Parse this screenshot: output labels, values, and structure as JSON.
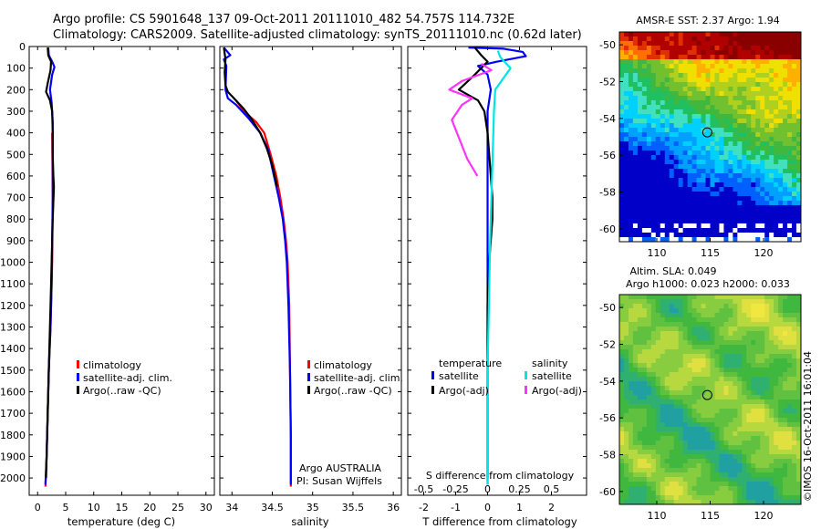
{
  "header": {
    "line1": "Argo profile: CS 5901648_137 09-Oct-2011 20111010_482 54.757S 114.732E",
    "line2": "Climatology: CARS2009. Satellite-adjusted climatology: synTS_20111010.nc (0.62d later)"
  },
  "colors": {
    "climatology": "#ff0000",
    "satellite": "#0000ff",
    "argo": "#000000",
    "salinity_satellite": "#00e5e5",
    "salinity_argo": "#ff33ff",
    "map_land_gap": "#ffffff"
  },
  "chart_data": [
    {
      "type": "line",
      "panel": "temperature",
      "xlabel": "temperature (deg C)",
      "ylabel": "",
      "xlim": [
        -1.5,
        31.5
      ],
      "ylim": [
        2080,
        0
      ],
      "x_ticks": [
        "0",
        "5",
        "10",
        "15",
        "20",
        "25",
        "30"
      ],
      "x_tick_values": [
        0,
        5,
        10,
        15,
        20,
        25,
        30
      ],
      "y_ticks": [
        0,
        100,
        200,
        300,
        400,
        500,
        600,
        700,
        800,
        900,
        1000,
        1100,
        1200,
        1300,
        1400,
        1500,
        1600,
        1700,
        1800,
        1900,
        2000
      ],
      "legend": [
        "climatology",
        "satellite-adj. clim.",
        "Argo(..raw -QC)"
      ],
      "legend_position": "lower-center",
      "series": [
        {
          "name": "climatology",
          "color_key": "climatology",
          "points": [
            [
              2.6,
              400
            ],
            [
              2.7,
              700
            ],
            [
              2.6,
              1000
            ],
            [
              2.3,
              1300
            ],
            [
              2.0,
              1500
            ],
            [
              1.8,
              1700
            ],
            [
              1.6,
              1900
            ],
            [
              1.4,
              2040
            ]
          ]
        },
        {
          "name": "satellite-adj. clim.",
          "color_key": "satellite",
          "points": [
            [
              1.9,
              5
            ],
            [
              2.0,
              40
            ],
            [
              2.6,
              70
            ],
            [
              3.0,
              95
            ],
            [
              2.6,
              130
            ],
            [
              2.2,
              200
            ],
            [
              2.5,
              260
            ],
            [
              2.7,
              350
            ],
            [
              2.7,
              500
            ],
            [
              2.7,
              700
            ],
            [
              2.6,
              900
            ],
            [
              2.5,
              1100
            ],
            [
              2.3,
              1300
            ],
            [
              2.0,
              1500
            ],
            [
              1.8,
              1700
            ],
            [
              1.6,
              1900
            ],
            [
              1.4,
              2030
            ]
          ]
        },
        {
          "name": "Argo(..raw -QC)",
          "color_key": "argo",
          "points": [
            [
              1.8,
              5
            ],
            [
              1.9,
              40
            ],
            [
              2.4,
              70
            ],
            [
              2.3,
              110
            ],
            [
              1.8,
              170
            ],
            [
              1.5,
              210
            ],
            [
              2.2,
              250
            ],
            [
              2.6,
              300
            ],
            [
              2.7,
              400
            ],
            [
              2.7,
              500
            ],
            [
              2.8,
              600
            ],
            [
              2.9,
              650
            ],
            [
              2.8,
              720
            ],
            [
              2.7,
              800
            ],
            [
              2.6,
              900
            ],
            [
              2.5,
              1000
            ],
            [
              2.3,
              1200
            ],
            [
              2.1,
              1400
            ],
            [
              1.9,
              1600
            ],
            [
              1.7,
              1800
            ],
            [
              1.5,
              2000
            ]
          ]
        }
      ]
    },
    {
      "type": "line",
      "panel": "salinity",
      "xlabel": "salinity",
      "ylabel": "",
      "xlim": [
        33.85,
        36.1
      ],
      "ylim": [
        2080,
        0
      ],
      "x_ticks": [
        "34",
        "34.5",
        "35",
        "35.5",
        "36"
      ],
      "x_tick_values": [
        34,
        34.5,
        35,
        35.5,
        36
      ],
      "legend": [
        "climatology",
        "satellite-adj. clim.",
        "Argo(..raw -QC)"
      ],
      "legend_position": "lower-right",
      "annotation": [
        "Argo AUSTRALIA",
        "PI: Susan Wijffels"
      ],
      "series": [
        {
          "name": "climatology",
          "color_key": "climatology",
          "points": [
            [
              34.05,
              250
            ],
            [
              34.15,
              300
            ],
            [
              34.3,
              350
            ],
            [
              34.4,
              400
            ],
            [
              34.48,
              500
            ],
            [
              34.55,
              600
            ],
            [
              34.6,
              700
            ],
            [
              34.64,
              800
            ],
            [
              34.67,
              900
            ],
            [
              34.69,
              1000
            ],
            [
              34.71,
              1200
            ],
            [
              34.72,
              1500
            ],
            [
              34.73,
              1800
            ],
            [
              34.73,
              2040
            ]
          ]
        },
        {
          "name": "satellite-adj. clim.",
          "color_key": "satellite",
          "points": [
            [
              33.9,
              5
            ],
            [
              33.98,
              40
            ],
            [
              33.9,
              60
            ],
            [
              33.93,
              90
            ],
            [
              33.92,
              200
            ],
            [
              33.95,
              240
            ],
            [
              34.05,
              270
            ],
            [
              34.2,
              330
            ],
            [
              34.35,
              400
            ],
            [
              34.45,
              480
            ],
            [
              34.52,
              600
            ],
            [
              34.58,
              700
            ],
            [
              34.63,
              800
            ],
            [
              34.66,
              900
            ],
            [
              34.68,
              1000
            ],
            [
              34.7,
              1200
            ],
            [
              34.72,
              1500
            ],
            [
              34.73,
              1800
            ],
            [
              34.73,
              2030
            ]
          ]
        },
        {
          "name": "Argo(..raw -QC)",
          "color_key": "argo",
          "points": [
            [
              33.9,
              5
            ],
            [
              33.92,
              60
            ],
            [
              33.91,
              120
            ],
            [
              33.92,
              180
            ],
            [
              33.95,
              210
            ],
            [
              34.05,
              250
            ],
            [
              34.15,
              290
            ],
            [
              34.25,
              340
            ],
            [
              34.35,
              400
            ],
            [
              34.43,
              470
            ],
            [
              34.5,
              550
            ],
            [
              34.56,
              650
            ]
          ]
        }
      ]
    },
    {
      "type": "line",
      "panel": "difference",
      "xlabel": "T difference from climatology",
      "top_label": "S difference from climatology",
      "xlim": [
        -2.5,
        3.1
      ],
      "ylim": [
        2080,
        0
      ],
      "x_ticks": [
        "-2",
        "-1",
        "0",
        "1",
        "2"
      ],
      "x_tick_values": [
        -2,
        -1,
        0,
        1,
        2
      ],
      "s_ticks": [
        "-0.5",
        "-0.25",
        "0",
        "0.25",
        "0.5"
      ],
      "s_tick_values": [
        -0.5,
        -0.25,
        0,
        0.25,
        0.5
      ],
      "legend_headers": [
        "temperature",
        "salinity"
      ],
      "legend": [
        "satellite",
        "Argo(-adj)",
        "satellite",
        "Argo(-adj)"
      ],
      "legend_position": "lower-center",
      "series": [
        {
          "name": "satellite",
          "group": "temperature",
          "color_key": "satellite",
          "points": [
            [
              -0.6,
              5
            ],
            [
              0.5,
              10
            ],
            [
              1.1,
              25
            ],
            [
              1.2,
              45
            ],
            [
              0.3,
              70
            ],
            [
              -0.3,
              90
            ],
            [
              0.0,
              130
            ],
            [
              0.1,
              200
            ],
            [
              0.0,
              300
            ],
            [
              0.0,
              500
            ],
            [
              0.0,
              800
            ],
            [
              0.0,
              1200
            ],
            [
              0.0,
              1600
            ],
            [
              0.0,
              2030
            ]
          ]
        },
        {
          "name": "Argo(-adj)",
          "group": "temperature",
          "color_key": "argo",
          "points": [
            [
              -0.4,
              5
            ],
            [
              -0.2,
              40
            ],
            [
              0.0,
              70
            ],
            [
              -0.4,
              130
            ],
            [
              -0.9,
              200
            ],
            [
              -0.3,
              250
            ],
            [
              -0.1,
              300
            ],
            [
              0.0,
              400
            ],
            [
              0.05,
              500
            ],
            [
              0.1,
              600
            ],
            [
              0.15,
              700
            ],
            [
              0.15,
              800
            ],
            [
              0.1,
              900
            ],
            [
              0.05,
              1000
            ],
            [
              0.0,
              1200
            ],
            [
              0.0,
              1500
            ],
            [
              0.0,
              1800
            ],
            [
              0.0,
              2000
            ]
          ]
        },
        {
          "name": "satellite",
          "group": "salinity",
          "color_key": "salinity_satellite",
          "points": [
            [
              0.08,
              20
            ],
            [
              0.1,
              50
            ],
            [
              0.18,
              100
            ],
            [
              0.06,
              200
            ],
            [
              0.05,
              300
            ],
            [
              0.04,
              500
            ],
            [
              0.03,
              700
            ],
            [
              0.02,
              900
            ],
            [
              0.01,
              1200
            ],
            [
              0.0,
              1500
            ],
            [
              0.0,
              1800
            ],
            [
              0.0,
              2030
            ]
          ]
        },
        {
          "name": "Argo(-adj)",
          "group": "salinity",
          "color_key": "salinity_argo",
          "points": [
            [
              -0.05,
              80
            ],
            [
              0.03,
              110
            ],
            [
              -0.2,
              160
            ],
            [
              -0.3,
              200
            ],
            [
              -0.12,
              240
            ],
            [
              -0.2,
              270
            ],
            [
              -0.28,
              340
            ],
            [
              -0.22,
              430
            ],
            [
              -0.16,
              520
            ],
            [
              -0.08,
              600
            ]
          ]
        }
      ]
    },
    {
      "type": "heatmap",
      "panel": "sst",
      "title": "AMSR-E SST: 2.37 Argo: 1.94",
      "xlim": [
        106.5,
        123.5
      ],
      "ylim": [
        -60.7,
        -49.3
      ],
      "x_ticks": [
        "110",
        "115",
        "120"
      ],
      "x_tick_values": [
        110,
        115,
        120
      ],
      "y_ticks": [
        "-50",
        "-52",
        "-54",
        "-56",
        "-58",
        "-60"
      ],
      "y_tick_values": [
        -50,
        -52,
        -54,
        -56,
        -58,
        -60
      ],
      "marker": {
        "lon": 114.732,
        "lat": -54.757
      }
    },
    {
      "type": "heatmap",
      "panel": "sla",
      "title_lines": [
        "Altim. SLA: 0.049",
        "Argo h1000: 0.023 h2000: 0.033"
      ],
      "xlim": [
        106.5,
        123.5
      ],
      "ylim": [
        -60.7,
        -49.3
      ],
      "x_ticks": [
        "110",
        "115",
        "120"
      ],
      "x_tick_values": [
        110,
        115,
        120
      ],
      "y_ticks": [
        "-50",
        "-52",
        "-54",
        "-56",
        "-58",
        "-60"
      ],
      "y_tick_values": [
        -50,
        -52,
        -54,
        -56,
        -58,
        -60
      ],
      "marker": {
        "lon": 114.732,
        "lat": -54.757
      }
    }
  ],
  "side_label": "©IMOS 16-Oct-2011 16:01:04"
}
